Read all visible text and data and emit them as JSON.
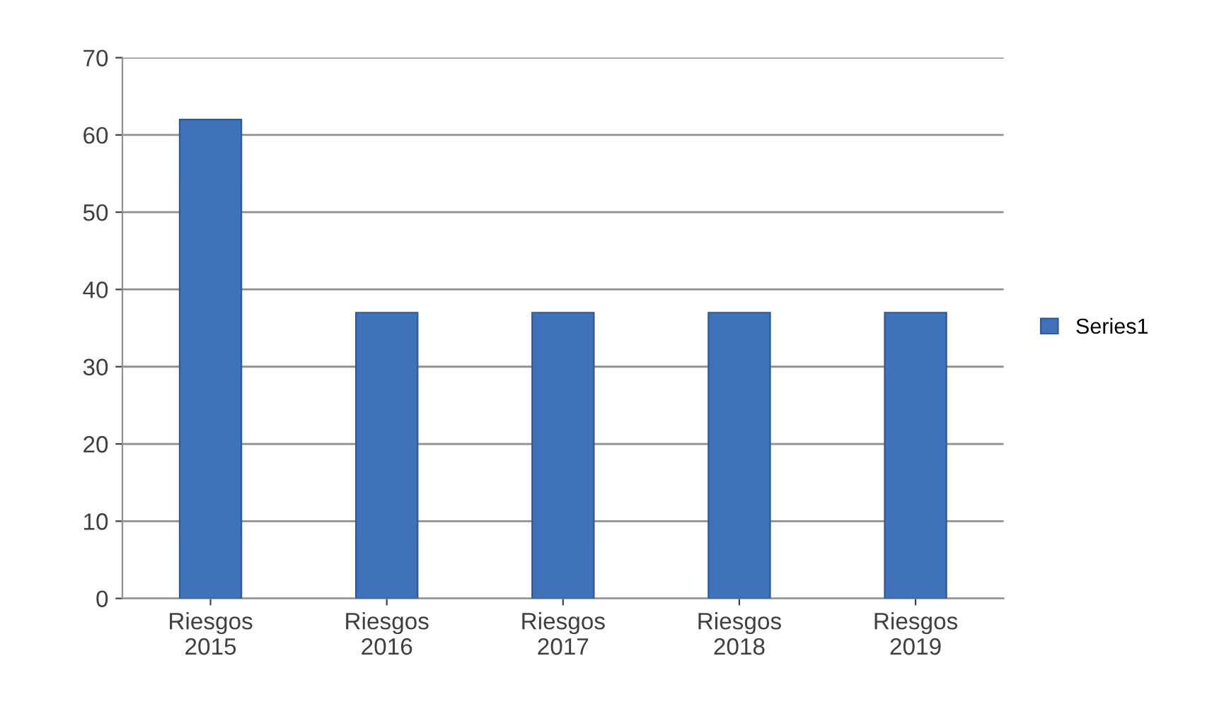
{
  "chart_data": {
    "type": "bar",
    "categories": [
      "Riesgos\n2015",
      "Riesgos\n2016",
      "Riesgos\n2017",
      "Riesgos\n2018",
      "Riesgos\n2019"
    ],
    "series": [
      {
        "name": "Series1",
        "color": "#3f72b8",
        "values": [
          62,
          37,
          37,
          37,
          37
        ]
      }
    ],
    "ylim": [
      0,
      70
    ],
    "yticks": [
      0,
      10,
      20,
      30,
      40,
      50,
      60,
      70
    ],
    "grid": "y",
    "legend": "right"
  }
}
